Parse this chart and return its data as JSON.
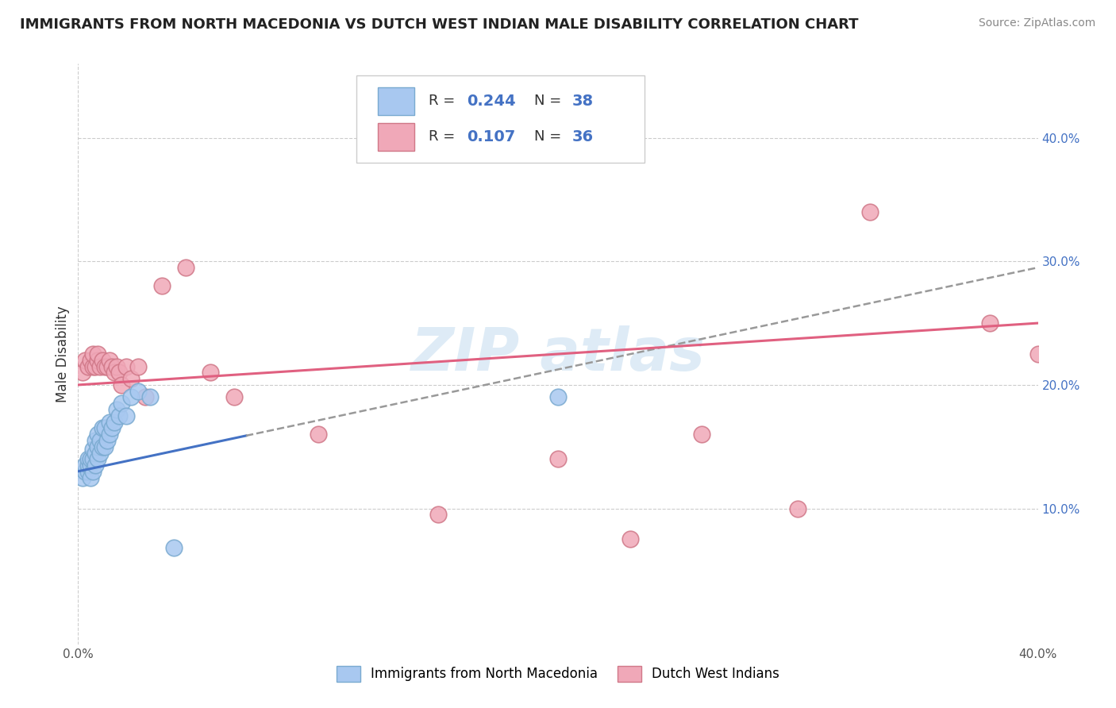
{
  "title": "IMMIGRANTS FROM NORTH MACEDONIA VS DUTCH WEST INDIAN MALE DISABILITY CORRELATION CHART",
  "source": "Source: ZipAtlas.com",
  "ylabel": "Male Disability",
  "xlim": [
    0.0,
    0.4
  ],
  "ylim": [
    -0.01,
    0.46
  ],
  "yticks": [
    0.1,
    0.2,
    0.3,
    0.4
  ],
  "ytick_labels": [
    "10.0%",
    "20.0%",
    "30.0%",
    "40.0%"
  ],
  "grid_color": "#cccccc",
  "background_color": "#ffffff",
  "series1_color": "#a8c8f0",
  "series1_edge": "#7aaad0",
  "series2_color": "#f0a8b8",
  "series2_edge": "#d07888",
  "line1_color": "#4472c4",
  "line1_dash_color": "#aaaaaa",
  "line2_color": "#e06080",
  "series1_label": "Immigrants from North Macedonia",
  "series2_label": "Dutch West Indians",
  "blue_x": [
    0.002,
    0.003,
    0.003,
    0.004,
    0.004,
    0.004,
    0.005,
    0.005,
    0.005,
    0.006,
    0.006,
    0.006,
    0.007,
    0.007,
    0.007,
    0.008,
    0.008,
    0.008,
    0.009,
    0.009,
    0.01,
    0.01,
    0.011,
    0.011,
    0.012,
    0.013,
    0.013,
    0.014,
    0.015,
    0.016,
    0.017,
    0.018,
    0.02,
    0.022,
    0.025,
    0.03,
    0.04,
    0.2
  ],
  "blue_y": [
    0.125,
    0.13,
    0.135,
    0.13,
    0.135,
    0.14,
    0.125,
    0.135,
    0.14,
    0.13,
    0.14,
    0.148,
    0.135,
    0.145,
    0.155,
    0.14,
    0.15,
    0.16,
    0.145,
    0.155,
    0.15,
    0.165,
    0.15,
    0.165,
    0.155,
    0.16,
    0.17,
    0.165,
    0.17,
    0.18,
    0.175,
    0.185,
    0.175,
    0.19,
    0.195,
    0.19,
    0.068,
    0.19
  ],
  "pink_x": [
    0.002,
    0.003,
    0.004,
    0.005,
    0.006,
    0.006,
    0.007,
    0.008,
    0.008,
    0.009,
    0.01,
    0.011,
    0.012,
    0.013,
    0.014,
    0.015,
    0.016,
    0.017,
    0.018,
    0.02,
    0.022,
    0.025,
    0.028,
    0.035,
    0.045,
    0.055,
    0.065,
    0.1,
    0.15,
    0.2,
    0.23,
    0.26,
    0.3,
    0.33,
    0.38,
    0.4
  ],
  "pink_y": [
    0.21,
    0.22,
    0.215,
    0.22,
    0.215,
    0.225,
    0.215,
    0.22,
    0.225,
    0.215,
    0.22,
    0.215,
    0.215,
    0.22,
    0.215,
    0.21,
    0.215,
    0.21,
    0.2,
    0.215,
    0.205,
    0.215,
    0.19,
    0.28,
    0.295,
    0.21,
    0.19,
    0.16,
    0.095,
    0.14,
    0.075,
    0.16,
    0.1,
    0.34,
    0.25,
    0.225
  ],
  "blue_line_x0": 0.0,
  "blue_line_x1": 0.4,
  "blue_line_y0": 0.13,
  "blue_line_y1": 0.295,
  "pink_line_x0": 0.0,
  "pink_line_x1": 0.4,
  "pink_line_y0": 0.2,
  "pink_line_y1": 0.25,
  "legend_R1": "0.244",
  "legend_N1": "38",
  "legend_R2": "0.107",
  "legend_N2": "36"
}
